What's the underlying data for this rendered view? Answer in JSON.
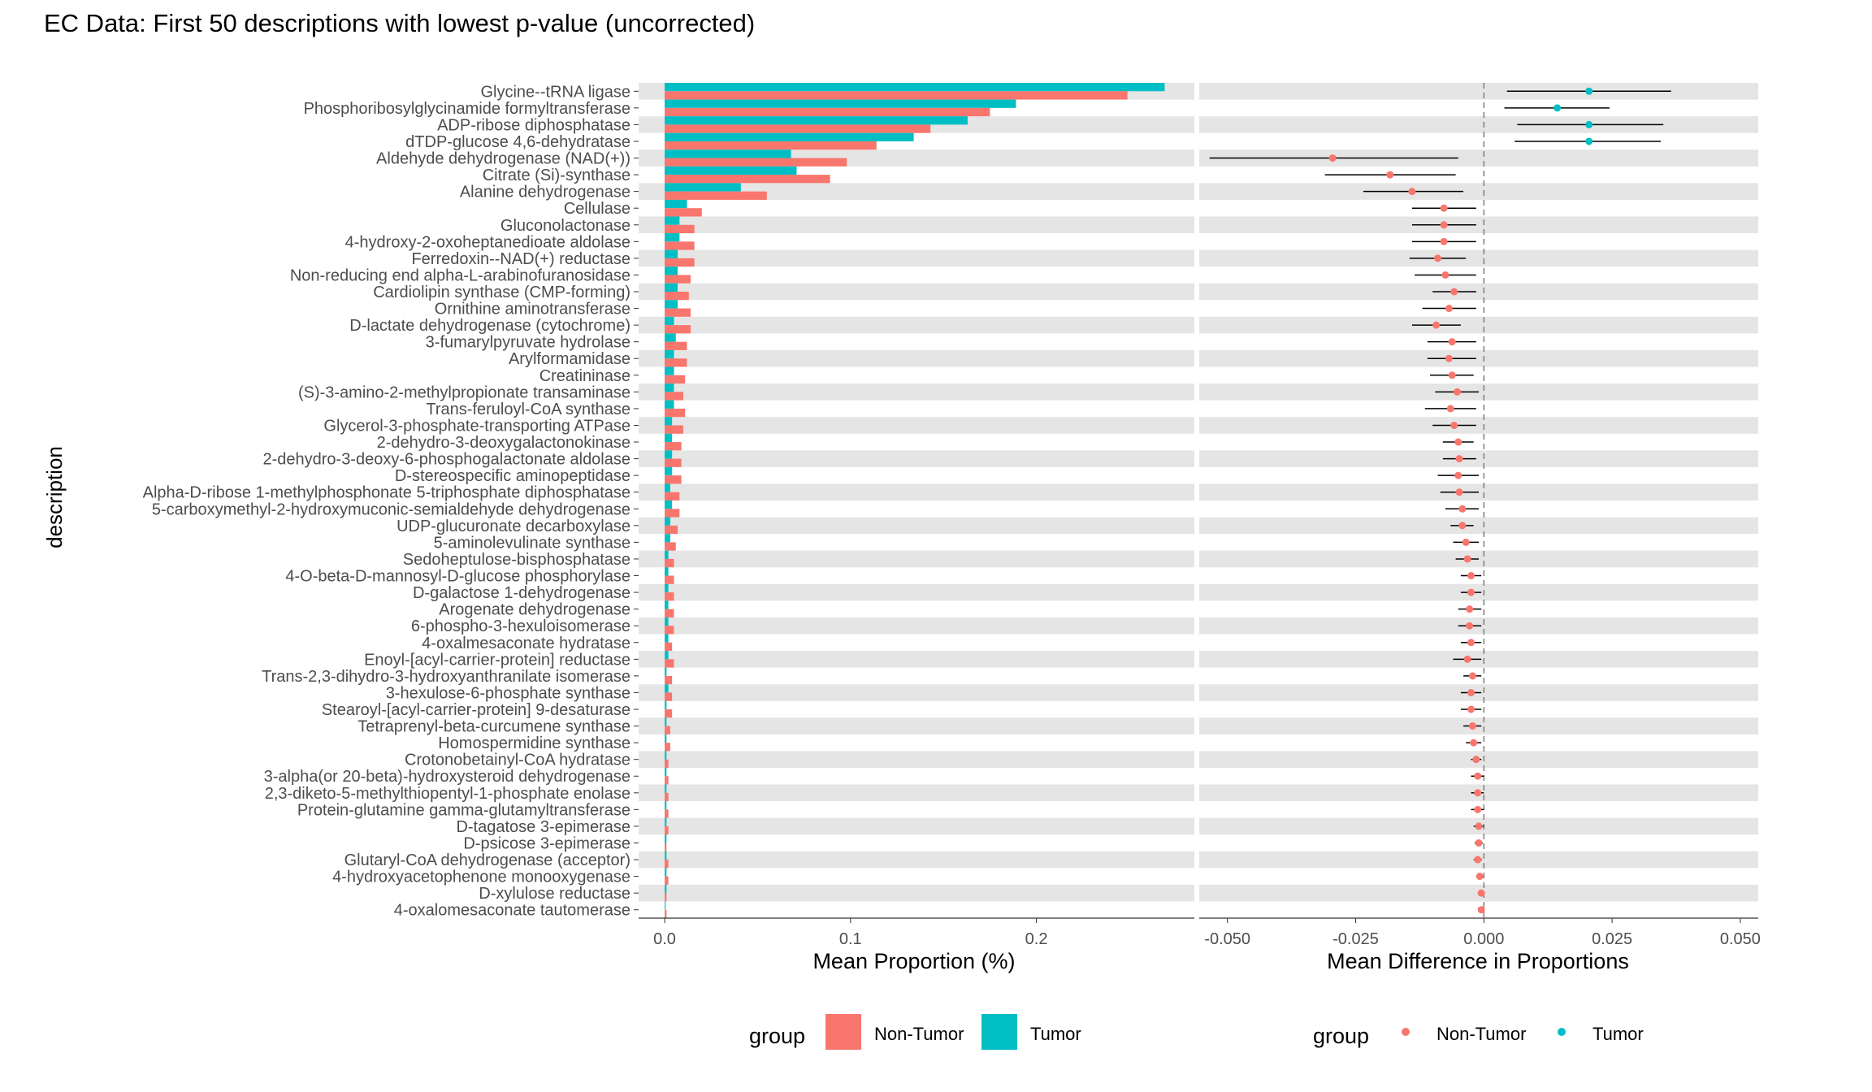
{
  "title": "EC Data: First 50 descriptions with lowest p-value (uncorrected)",
  "chart_data": [
    {
      "type": "bar",
      "orientation": "horizontal",
      "ylabel": "description",
      "xlabel": "Mean Proportion (%)",
      "xlim": [
        -0.014,
        0.285
      ],
      "xticks": [
        0.0,
        0.1,
        0.2
      ],
      "xtick_labels": [
        "0.0",
        "0.1",
        "0.2"
      ],
      "categories": [
        "Glycine--tRNA ligase",
        "Phosphoribosylglycinamide formyltransferase",
        "ADP-ribose diphosphatase",
        "dTDP-glucose 4,6-dehydratase",
        "Aldehyde dehydrogenase (NAD(+))",
        "Citrate (Si)-synthase",
        "Alanine dehydrogenase",
        "Cellulase",
        "Gluconolactonase",
        "4-hydroxy-2-oxoheptanedioate aldolase",
        "Ferredoxin--NAD(+) reductase",
        "Non-reducing end alpha-L-arabinofuranosidase",
        "Cardiolipin synthase (CMP-forming)",
        "Ornithine aminotransferase",
        "D-lactate dehydrogenase (cytochrome)",
        "3-fumarylpyruvate hydrolase",
        "Arylformamidase",
        "Creatininase",
        "(S)-3-amino-2-methylpropionate transaminase",
        "Trans-feruloyl-CoA synthase",
        "Glycerol-3-phosphate-transporting ATPase",
        "2-dehydro-3-deoxygalactonokinase",
        "2-dehydro-3-deoxy-6-phosphogalactonate aldolase",
        "D-stereospecific aminopeptidase",
        "Alpha-D-ribose 1-methylphosphonate 5-triphosphate diphosphatase",
        "5-carboxymethyl-2-hydroxymuconic-semialdehyde dehydrogenase",
        "UDP-glucuronate decarboxylase",
        "5-aminolevulinate synthase",
        "Sedoheptulose-bisphosphatase",
        "4-O-beta-D-mannosyl-D-glucose phosphorylase",
        "D-galactose 1-dehydrogenase",
        "Arogenate dehydrogenase",
        "6-phospho-3-hexuloisomerase",
        "4-oxalmesaconate hydratase",
        "Enoyl-[acyl-carrier-protein] reductase",
        "Trans-2,3-dihydro-3-hydroxyanthranilate isomerase",
        "3-hexulose-6-phosphate synthase",
        "Stearoyl-[acyl-carrier-protein] 9-desaturase",
        "Tetraprenyl-beta-curcumene synthase",
        "Homospermidine synthase",
        "Crotonobetainyl-CoA hydratase",
        "3-alpha(or 20-beta)-hydroxysteroid dehydrogenase",
        "2,3-diketo-5-methylthiopentyl-1-phosphate enolase",
        "Protein-glutamine gamma-glutamyltransferase",
        "D-tagatose 3-epimerase",
        "D-psicose 3-epimerase",
        "Glutaryl-CoA dehydrogenase (acceptor)",
        "4-hydroxyacetophenone monooxygenase",
        "D-xylulose reductase",
        "4-oxalomesaconate tautomerase"
      ],
      "series": [
        {
          "name": "Non-Tumor",
          "color": "#F8766D",
          "values": [
            0.249,
            0.175,
            0.143,
            0.114,
            0.098,
            0.089,
            0.055,
            0.02,
            0.016,
            0.016,
            0.016,
            0.014,
            0.013,
            0.014,
            0.014,
            0.012,
            0.012,
            0.011,
            0.01,
            0.011,
            0.01,
            0.009,
            0.009,
            0.009,
            0.008,
            0.008,
            0.007,
            0.006,
            0.005,
            0.005,
            0.005,
            0.005,
            0.005,
            0.004,
            0.005,
            0.004,
            0.004,
            0.004,
            0.003,
            0.003,
            0.002,
            0.002,
            0.002,
            0.002,
            0.002,
            0.001,
            0.002,
            0.002,
            0.001,
            0.001
          ]
        },
        {
          "name": "Tumor",
          "color": "#00BFC4",
          "values": [
            0.269,
            0.189,
            0.163,
            0.134,
            0.068,
            0.071,
            0.041,
            0.012,
            0.008,
            0.008,
            0.007,
            0.007,
            0.007,
            0.007,
            0.005,
            0.006,
            0.005,
            0.005,
            0.005,
            0.005,
            0.004,
            0.004,
            0.004,
            0.004,
            0.003,
            0.004,
            0.003,
            0.003,
            0.002,
            0.002,
            0.002,
            0.002,
            0.002,
            0.002,
            0.002,
            0.001,
            0.002,
            0.001,
            0.001,
            0.001,
            0.001,
            0.001,
            0.001,
            0.001,
            0.001,
            0.001,
            0.001,
            0.001,
            0.001,
            0.0005
          ]
        }
      ],
      "legend": {
        "title": "group",
        "position": "bottom",
        "entries": [
          "Non-Tumor",
          "Tumor"
        ]
      }
    },
    {
      "type": "scatter",
      "subtype": "errorbar",
      "xlabel": "Mean Difference in Proportions",
      "xlim": [
        -0.0555,
        0.0535
      ],
      "xticks": [
        -0.05,
        -0.025,
        0.0,
        0.025,
        0.05
      ],
      "xtick_labels": [
        "-0.050",
        "-0.025",
        "0.000",
        "0.025",
        "0.050"
      ],
      "reference_line": 0,
      "estimate": [
        0.0205,
        0.0143,
        0.0205,
        0.0205,
        -0.0295,
        -0.0183,
        -0.014,
        -0.0078,
        -0.0078,
        -0.0078,
        -0.009,
        -0.0075,
        -0.0058,
        -0.0068,
        -0.0093,
        -0.0062,
        -0.0068,
        -0.0062,
        -0.0052,
        -0.0065,
        -0.0058,
        -0.005,
        -0.0048,
        -0.005,
        -0.0048,
        -0.0042,
        -0.0042,
        -0.0035,
        -0.0032,
        -0.0025,
        -0.0025,
        -0.0028,
        -0.0028,
        -0.0025,
        -0.0032,
        -0.0022,
        -0.0025,
        -0.0025,
        -0.0022,
        -0.002,
        -0.0015,
        -0.0012,
        -0.0012,
        -0.0012,
        -0.001,
        -0.001,
        -0.0012,
        -0.0008,
        -0.0005,
        -0.0005
      ],
      "ci_low": [
        0.0045,
        0.004,
        0.0065,
        0.006,
        -0.0535,
        -0.031,
        -0.0235,
        -0.014,
        -0.014,
        -0.014,
        -0.0145,
        -0.0135,
        -0.01,
        -0.012,
        -0.014,
        -0.011,
        -0.011,
        -0.0105,
        -0.0095,
        -0.0115,
        -0.01,
        -0.008,
        -0.008,
        -0.009,
        -0.0085,
        -0.0075,
        -0.0065,
        -0.006,
        -0.0055,
        -0.0045,
        -0.0045,
        -0.005,
        -0.005,
        -0.0045,
        -0.006,
        -0.004,
        -0.0045,
        -0.0045,
        -0.004,
        -0.0035,
        -0.0025,
        -0.0025,
        -0.0025,
        -0.0025,
        -0.002,
        -0.0018,
        -0.002,
        -0.0015,
        -0.001,
        -0.001
      ],
      "ci_high": [
        0.0365,
        0.0245,
        0.035,
        0.0345,
        -0.005,
        -0.0055,
        -0.004,
        -0.0015,
        -0.0015,
        -0.0015,
        -0.0035,
        -0.0015,
        -0.0015,
        -0.0015,
        -0.0045,
        -0.0015,
        -0.0015,
        -0.002,
        -0.001,
        -0.0015,
        -0.0015,
        -0.002,
        -0.0015,
        -0.001,
        -0.001,
        -0.001,
        -0.002,
        -0.001,
        -0.001,
        -0.0005,
        -0.0005,
        -0.0005,
        -0.0005,
        -0.0005,
        -0.0005,
        -0.0005,
        -0.0005,
        -0.0005,
        -0.0005,
        -0.0005,
        -0.0005,
        0.0,
        0.0,
        0.0,
        0.0,
        -0.0002,
        -0.0004,
        -0.0001,
        0.0,
        0.0
      ],
      "group": [
        "Tumor",
        "Tumor",
        "Tumor",
        "Tumor",
        "Non-Tumor",
        "Non-Tumor",
        "Non-Tumor",
        "Non-Tumor",
        "Non-Tumor",
        "Non-Tumor",
        "Non-Tumor",
        "Non-Tumor",
        "Non-Tumor",
        "Non-Tumor",
        "Non-Tumor",
        "Non-Tumor",
        "Non-Tumor",
        "Non-Tumor",
        "Non-Tumor",
        "Non-Tumor",
        "Non-Tumor",
        "Non-Tumor",
        "Non-Tumor",
        "Non-Tumor",
        "Non-Tumor",
        "Non-Tumor",
        "Non-Tumor",
        "Non-Tumor",
        "Non-Tumor",
        "Non-Tumor",
        "Non-Tumor",
        "Non-Tumor",
        "Non-Tumor",
        "Non-Tumor",
        "Non-Tumor",
        "Non-Tumor",
        "Non-Tumor",
        "Non-Tumor",
        "Non-Tumor",
        "Non-Tumor",
        "Non-Tumor",
        "Non-Tumor",
        "Non-Tumor",
        "Non-Tumor",
        "Non-Tumor",
        "Non-Tumor",
        "Non-Tumor",
        "Non-Tumor",
        "Non-Tumor",
        "Non-Tumor"
      ],
      "colors": {
        "Non-Tumor": "#F8766D",
        "Tumor": "#00BFC4"
      },
      "legend": {
        "title": "group",
        "position": "bottom",
        "entries": [
          "Non-Tumor",
          "Tumor"
        ]
      }
    }
  ]
}
